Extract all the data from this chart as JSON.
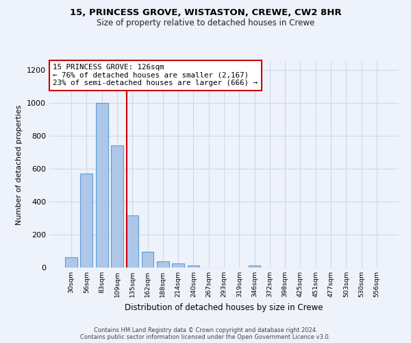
{
  "title_line1": "15, PRINCESS GROVE, WISTASTON, CREWE, CW2 8HR",
  "title_line2": "Size of property relative to detached houses in Crewe",
  "xlabel": "Distribution of detached houses by size in Crewe",
  "ylabel": "Number of detached properties",
  "bar_color": "#aec6e8",
  "bar_edge_color": "#5a9fd4",
  "categories": [
    "30sqm",
    "56sqm",
    "83sqm",
    "109sqm",
    "135sqm",
    "162sqm",
    "188sqm",
    "214sqm",
    "240sqm",
    "267sqm",
    "293sqm",
    "319sqm",
    "346sqm",
    "372sqm",
    "398sqm",
    "425sqm",
    "451sqm",
    "477sqm",
    "503sqm",
    "530sqm",
    "556sqm"
  ],
  "values": [
    62,
    570,
    1000,
    740,
    315,
    95,
    37,
    25,
    13,
    0,
    0,
    0,
    13,
    0,
    0,
    0,
    0,
    0,
    0,
    0,
    0
  ],
  "ylim": [
    0,
    1250
  ],
  "yticks": [
    0,
    200,
    400,
    600,
    800,
    1000,
    1200
  ],
  "annotation_line1": "15 PRINCESS GROVE: 126sqm",
  "annotation_line2": "← 76% of detached houses are smaller (2,167)",
  "annotation_line3": "23% of semi-detached houses are larger (666) →",
  "red_line_color": "#cc0000",
  "annotation_box_color": "#ffffff",
  "annotation_box_edge": "#cc0000",
  "grid_color": "#ced8ea",
  "background_color": "#eef2fb",
  "footer": "Contains HM Land Registry data © Crown copyright and database right 2024.\nContains public sector information licensed under the Open Government Licence v3.0.",
  "bar_width": 0.8,
  "red_line_x": 3.65
}
